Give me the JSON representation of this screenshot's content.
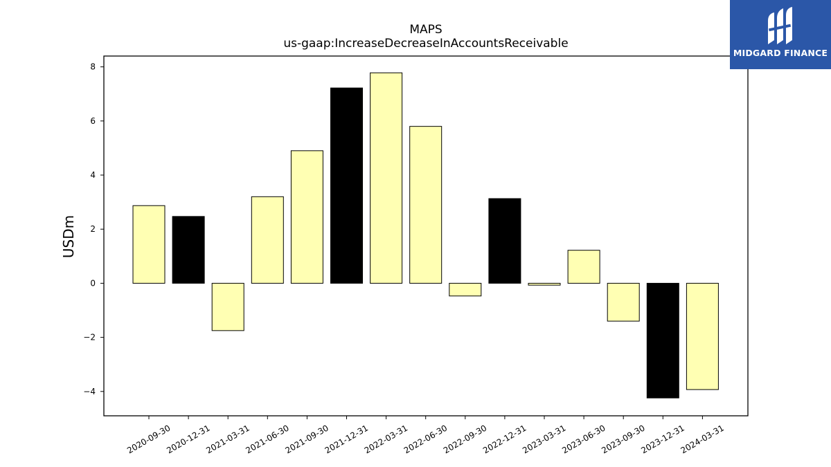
{
  "brand": {
    "name": "MIDGARD FINANCE",
    "bg_color": "#2b57a8",
    "icon": "midgard-logo-icon"
  },
  "chart_data": {
    "type": "bar",
    "title": "MAPS",
    "subtitle": "us-gaap:IncreaseDecreaseInAccountsReceivable",
    "xlabel": "",
    "ylabel": "USDm",
    "ylim": [
      -4.9,
      8.4
    ],
    "yticks": [
      -4,
      -2,
      0,
      2,
      4,
      6,
      8
    ],
    "ytick_labels": [
      "−4",
      "−2",
      "0",
      "2",
      "4",
      "6",
      "8"
    ],
    "categories": [
      "2020-09-30",
      "2020-12-31",
      "2021-03-31",
      "2021-06-30",
      "2021-09-30",
      "2021-12-31",
      "2022-03-31",
      "2022-06-30",
      "2022-09-30",
      "2022-12-31",
      "2023-03-31",
      "2023-06-30",
      "2023-09-30",
      "2023-12-31",
      "2024-03-31"
    ],
    "values": [
      2.87,
      2.47,
      -1.75,
      3.2,
      4.9,
      7.22,
      7.78,
      5.8,
      -0.47,
      3.13,
      -0.07,
      1.22,
      -1.4,
      -4.24,
      -3.93
    ],
    "bar_colors": [
      "#ffffb3",
      "#000000",
      "#ffffb3",
      "#ffffb3",
      "#ffffb3",
      "#000000",
      "#ffffb3",
      "#ffffb3",
      "#ffffb3",
      "#000000",
      "#ffffb3",
      "#ffffb3",
      "#ffffb3",
      "#000000",
      "#ffffb3"
    ],
    "edge_color": "#000000",
    "grid": false,
    "legend": "none"
  }
}
